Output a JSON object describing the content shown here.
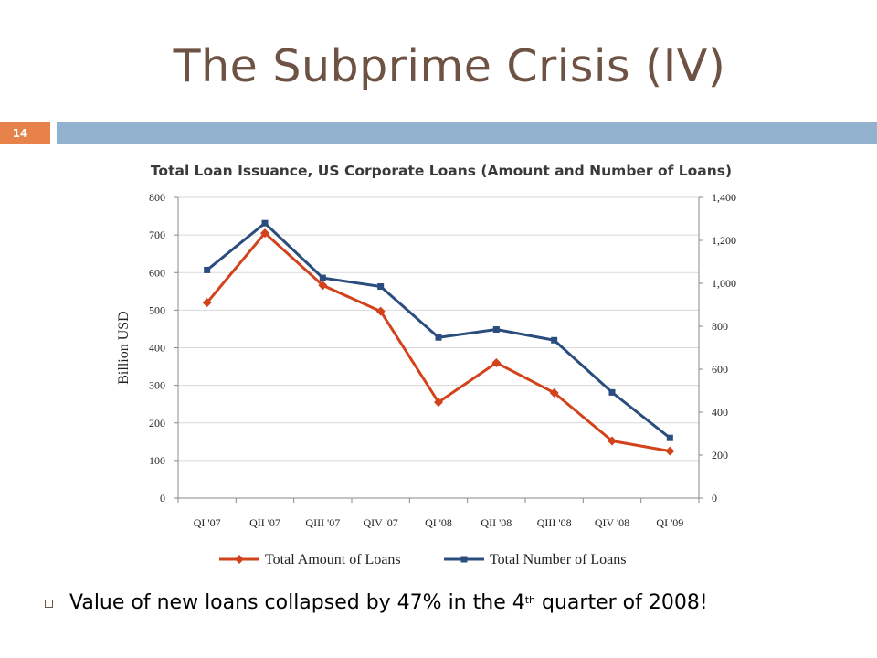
{
  "slide": {
    "title": "The Subprime Crisis (IV)",
    "page_number": "14",
    "bullet": {
      "text_before": "Value of new loans collapsed by 47% in the 4",
      "superscript": "th",
      "text_after": " quarter of 2008!"
    }
  },
  "colors": {
    "title": "#6e5244",
    "accent_orange": "#e6824a",
    "header_bar": "#93b2cf",
    "series_amount": "#d2421b",
    "series_number": "#2a4d7e"
  },
  "chart_data": {
    "type": "line",
    "title": "Total Loan Issuance, US Corporate Loans (Amount and Number of Loans)",
    "ylabel": "Billion USD",
    "ylabel_right": "",
    "categories": [
      "QI '07",
      "QII '07",
      "QIII '07",
      "QIV '07",
      "QI '08",
      "QII '08",
      "QIII '08",
      "QIV '08",
      "QI '09"
    ],
    "ylim": [
      0,
      800
    ],
    "yticks": [
      "0",
      "100",
      "200",
      "300",
      "400",
      "500",
      "600",
      "700",
      "800"
    ],
    "ylim_right": [
      0,
      1400
    ],
    "yticks_right": [
      "0",
      "200",
      "400",
      "600",
      "800",
      "1,000",
      "1,200",
      "1,400"
    ],
    "grid": true,
    "legend_position": "bottom",
    "series": [
      {
        "name": "Total Amount of Loans",
        "axis": "left",
        "marker": "diamond",
        "color": "#d2421b",
        "values": [
          520,
          705,
          566,
          497,
          255,
          360,
          280,
          152,
          125
        ]
      },
      {
        "name": "Total Number of Loans",
        "axis": "right",
        "marker": "square",
        "color": "#2a4d7e",
        "values": [
          1062,
          1280,
          1025,
          985,
          748,
          785,
          735,
          492,
          280
        ]
      }
    ]
  }
}
